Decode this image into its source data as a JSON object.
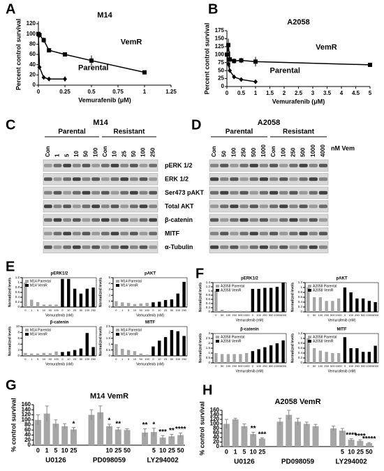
{
  "chart_data": [
    {
      "type": "line",
      "panel": "A",
      "title": "M14",
      "x_label": "Vemurafenib (μM)",
      "y_label": "Percent control survival",
      "xlim": [
        0,
        1.25
      ],
      "xticks": [
        0,
        0.25,
        0.5,
        0.75,
        1,
        1.25
      ],
      "ylim": [
        0,
        120
      ],
      "yticks": [
        0,
        20,
        40,
        60,
        80,
        100,
        120
      ],
      "series": [
        {
          "name": "VemR",
          "color": "#000000",
          "x": [
            0,
            0.01,
            0.05,
            0.1,
            0.25,
            0.5,
            1
          ],
          "values": [
            100,
            98,
            88,
            68,
            60,
            48,
            25
          ],
          "errors": [
            25,
            5,
            5,
            4,
            3,
            10,
            3
          ]
        },
        {
          "name": "Parental",
          "color": "#000000",
          "x": [
            0,
            0.01,
            0.05,
            0.1,
            0.25
          ],
          "values": [
            100,
            35,
            15,
            12,
            12
          ],
          "errors": [
            3,
            3,
            2,
            3,
            5
          ]
        }
      ]
    },
    {
      "type": "line",
      "panel": "B",
      "title": "A2058",
      "x_label": "Vemurafenib (μM)",
      "y_label": "Percent control survival",
      "xlim": [
        0,
        5
      ],
      "xticks": [
        0,
        0.5,
        1,
        1.5,
        2,
        2.5,
        3,
        3.5,
        4,
        4.5,
        5
      ],
      "ylim": [
        0,
        175
      ],
      "yticks": [
        0,
        25,
        50,
        75,
        100,
        125,
        150,
        175
      ],
      "series": [
        {
          "name": "VemR",
          "color": "#000000",
          "x": [
            0,
            0.05,
            0.1,
            0.25,
            0.5,
            1,
            5
          ],
          "values": [
            100,
            130,
            85,
            80,
            82,
            78,
            68
          ],
          "errors": [
            20,
            20,
            25,
            8,
            8,
            15,
            5
          ]
        },
        {
          "name": "Parental",
          "color": "#000000",
          "x": [
            0,
            0.05,
            0.1,
            0.25,
            0.5,
            1
          ],
          "values": [
            100,
            70,
            50,
            30,
            22,
            15
          ],
          "errors": [
            5,
            8,
            5,
            4,
            3,
            3
          ]
        }
      ]
    },
    {
      "type": "bar",
      "panel": "E",
      "title": "pERK1/2",
      "x_label": "Vemurafenib (nM)",
      "y_label": "Normalized levels",
      "categories": [
        "0",
        "1",
        "5",
        "10",
        "50",
        "100",
        "0",
        "10",
        "25",
        "50",
        "100",
        "250"
      ],
      "ylim": [
        0,
        1.2
      ],
      "yticks": [
        0,
        0.2,
        0.4,
        0.6,
        0.8,
        1,
        1.2
      ],
      "series": [
        {
          "name": "M14 Parental",
          "color": "#a6a6a6",
          "values": [
            1,
            0.3,
            0.2,
            0.1,
            0.1,
            0.1,
            null,
            null,
            null,
            null,
            null,
            null
          ]
        },
        {
          "name": "M14 VemR",
          "color": "#000000",
          "values": [
            null,
            null,
            null,
            null,
            null,
            null,
            1.15,
            1.15,
            0.75,
            0.55,
            0.75,
            0.8
          ]
        }
      ]
    },
    {
      "type": "bar",
      "title": "pAKT",
      "x_label": "Vemurafenib (nM)",
      "y_label": "Normalized levels",
      "categories": [
        "0",
        "1",
        "5",
        "10",
        "50",
        "100",
        "0",
        "10",
        "25",
        "50",
        "100",
        "250"
      ],
      "ylim": [
        0,
        5
      ],
      "yticks": [
        0,
        1,
        2,
        3,
        4,
        5
      ],
      "series": [
        {
          "name": "M14 Parental",
          "color": "#a6a6a6",
          "values": [
            1,
            0.8,
            0.7,
            0.5,
            0.6,
            0.7,
            null,
            null,
            null,
            null,
            null,
            null
          ]
        },
        {
          "name": "M14 VemR",
          "color": "#000000",
          "values": [
            null,
            null,
            null,
            null,
            null,
            null,
            0.8,
            0.9,
            1.2,
            1.3,
            2.3,
            4.3
          ]
        }
      ]
    },
    {
      "type": "bar",
      "title": "β-catenin",
      "x_label": "Vemurafenib (nM)",
      "y_label": "Normalized levels",
      "categories": [
        "0",
        "1",
        "5",
        "10",
        "50",
        "100",
        "0",
        "10",
        "25",
        "50",
        "100",
        "250"
      ],
      "ylim": [
        0,
        10
      ],
      "yticks": [
        0,
        2,
        4,
        6,
        8,
        10
      ],
      "series": [
        {
          "name": "M14 Parental",
          "color": "#a6a6a6",
          "values": [
            1,
            0.8,
            0.8,
            1,
            0.9,
            1.5,
            null,
            null,
            null,
            null,
            null,
            null
          ]
        },
        {
          "name": "M14 VemR",
          "color": "#000000",
          "values": [
            null,
            null,
            null,
            null,
            null,
            null,
            1.3,
            1.5,
            2,
            2.5,
            7.8,
            3
          ]
        }
      ]
    },
    {
      "type": "bar",
      "title": "MITF",
      "x_label": "Vemurafenib (nM)",
      "y_label": "Normalized levels",
      "categories": [
        "0",
        "1",
        "5",
        "10",
        "50",
        "100",
        "0",
        "10",
        "25",
        "50",
        "100",
        "250"
      ],
      "ylim": [
        0,
        2.5
      ],
      "yticks": [
        0,
        0.5,
        1,
        1.5,
        2,
        2.5
      ],
      "series": [
        {
          "name": "M14 Parental",
          "color": "#a6a6a6",
          "values": [
            1,
            0.6,
            0.5,
            0.4,
            0.2,
            0.1,
            null,
            null,
            null,
            null,
            null,
            null
          ]
        },
        {
          "name": "M14 VemR",
          "color": "#000000",
          "values": [
            null,
            null,
            null,
            null,
            null,
            null,
            0.8,
            1.3,
            1.6,
            2.2,
            2.1,
            1.7
          ]
        }
      ]
    },
    {
      "type": "bar",
      "panel": "F",
      "title": "pERK1/2",
      "x_label": "Vemurafenib (nM)",
      "y_label": "Normalized levels",
      "categories": [
        "0",
        "50",
        "100",
        "250",
        "500",
        "1000",
        "0",
        "100",
        "250",
        "500",
        "1000",
        "4000"
      ],
      "ylim": [
        0,
        1.4
      ],
      "yticks": [
        0,
        0.2,
        0.4,
        0.6,
        0.8,
        1,
        1.2,
        1.4
      ],
      "series": [
        {
          "name": "A2058 Parental",
          "color": "#a6a6a6",
          "values": [
            1,
            0.1,
            0.05,
            0.05,
            0.05,
            0.05,
            null,
            null,
            null,
            null,
            null,
            null
          ]
        },
        {
          "name": "A2058 VemR",
          "color": "#000000",
          "values": [
            null,
            null,
            null,
            null,
            null,
            null,
            1.1,
            1.1,
            1.15,
            1.15,
            1.2,
            1.4
          ]
        }
      ]
    },
    {
      "type": "bar",
      "title": "pAKT",
      "x_label": "Vemurafenib (nM)",
      "y_label": "Normalized levels",
      "categories": [
        "0",
        "50",
        "100",
        "250",
        "500",
        "1000",
        "0",
        "100",
        "250",
        "500",
        "1000",
        "4000"
      ],
      "ylim": [
        0,
        1.2
      ],
      "yticks": [
        0,
        0.2,
        0.4,
        0.6,
        0.8,
        1,
        1.2
      ],
      "series": [
        {
          "name": "A2058 Parental",
          "color": "#a6a6a6",
          "values": [
            1,
            0.6,
            0.6,
            0.45,
            0.45,
            0.55,
            null,
            null,
            null,
            null,
            null,
            null
          ]
        },
        {
          "name": "A2058 VemR",
          "color": "#000000",
          "values": [
            null,
            null,
            null,
            null,
            null,
            null,
            1,
            0.8,
            0.55,
            0.55,
            0.45,
            0.4
          ]
        }
      ]
    },
    {
      "type": "bar",
      "title": "β-catenin",
      "x_label": "Vemurafenib (nM)",
      "y_label": "Normalized levels",
      "categories": [
        "0",
        "50",
        "100",
        "250",
        "500",
        "1000",
        "0",
        "100",
        "250",
        "500",
        "1000",
        "4000"
      ],
      "ylim": [
        0,
        3
      ],
      "yticks": [
        0,
        0.5,
        1,
        1.5,
        2,
        2.5,
        3
      ],
      "series": [
        {
          "name": "A2058 Parental",
          "color": "#a6a6a6",
          "values": [
            1,
            0.9,
            0.9,
            0.9,
            0.9,
            1,
            null,
            null,
            null,
            null,
            null,
            null
          ]
        },
        {
          "name": "A2058 VemR",
          "color": "#000000",
          "values": [
            null,
            null,
            null,
            null,
            null,
            null,
            1.2,
            1.4,
            1.6,
            1.8,
            2,
            2.3
          ]
        }
      ]
    },
    {
      "type": "bar",
      "title": "MITF",
      "x_label": "Vemurafenib (nM)",
      "y_label": "Normalized levels",
      "categories": [
        "0",
        "50",
        "100",
        "250",
        "500",
        "1000",
        "0",
        "100",
        "250",
        "500",
        "1000",
        "4000"
      ],
      "ylim": [
        0,
        1.2
      ],
      "yticks": [
        0,
        0.2,
        0.4,
        0.6,
        0.8,
        1,
        1.2
      ],
      "series": [
        {
          "name": "A2058 Parental",
          "color": "#a6a6a6",
          "values": [
            1,
            0.6,
            0.5,
            0.45,
            0.4,
            0.4,
            null,
            null,
            null,
            null,
            null,
            null
          ]
        },
        {
          "name": "A2058 VemR",
          "color": "#000000",
          "values": [
            null,
            null,
            null,
            null,
            null,
            null,
            1.05,
            0.6,
            0.6,
            0.45,
            0.45,
            0.7
          ]
        }
      ]
    },
    {
      "type": "errorbar",
      "panel": "G",
      "title": "M14 VemR",
      "y_label": "% control survival",
      "color": "#a6a6a6",
      "ylim": [
        0,
        160
      ],
      "yticks": [
        0,
        20,
        40,
        60,
        80,
        100,
        120,
        140,
        160
      ],
      "groups": [
        {
          "name": "U0126",
          "categories": [
            "0",
            "1",
            "5",
            "10",
            "25"
          ],
          "values": [
            100,
            125,
            85,
            75,
            62
          ],
          "errors": [
            20,
            30,
            15,
            10,
            8
          ],
          "annotations": [
            null,
            null,
            null,
            null,
            "*"
          ]
        },
        {
          "name": "PD098059",
          "categories": [
            null,
            null,
            "10",
            "25",
            "50"
          ],
          "values": [
            120,
            130,
            75,
            62,
            60
          ],
          "errors": [
            20,
            25,
            8,
            8,
            5
          ],
          "annotations": [
            null,
            null,
            "*",
            "**",
            null
          ]
        },
        {
          "name": "LY294002",
          "categories": [
            null,
            "5",
            "10",
            "25",
            "50"
          ],
          "values": [
            50,
            52,
            30,
            35,
            40
          ],
          "errors": [
            15,
            15,
            8,
            8,
            8
          ],
          "annotations": [
            "**",
            "*",
            "***",
            "**",
            "****"
          ]
        }
      ]
    },
    {
      "type": "errorbar",
      "panel": "H",
      "title": "A2058 VemR",
      "y_label": "% control survival",
      "color": "#a6a6a6",
      "ylim": [
        0,
        160
      ],
      "yticks": [
        0,
        20,
        40,
        60,
        80,
        100,
        120,
        140,
        160
      ],
      "groups": [
        {
          "name": "U0126",
          "categories": [
            "0",
            "1",
            "5",
            "10",
            "25"
          ],
          "values": [
            100,
            120,
            90,
            55,
            35
          ],
          "errors": [
            20,
            5,
            10,
            8,
            3
          ],
          "annotations": [
            null,
            null,
            null,
            "**",
            "***"
          ]
        },
        {
          "name": "PD098059",
          "categories": [
            null,
            null,
            null,
            null,
            null
          ],
          "values": [
            110,
            140,
            110,
            100,
            90
          ],
          "errors": [
            15,
            20,
            15,
            8,
            8
          ],
          "annotations": [
            null,
            null,
            null,
            null,
            null
          ]
        },
        {
          "name": "LY294002",
          "categories": [
            null,
            "5",
            "10",
            "25",
            "50"
          ],
          "values": [
            80,
            70,
            30,
            25,
            15
          ],
          "errors": [
            10,
            10,
            5,
            5,
            3
          ],
          "annotations": [
            null,
            null,
            "****",
            "****",
            "*****"
          ]
        }
      ]
    }
  ],
  "blots": {
    "rows": [
      "pERK 1/2",
      "ERK 1/2",
      "Ser473 pAKT",
      "Total AKT",
      "β-catenin",
      "MITF",
      "α-Tubulin"
    ],
    "unit": "nM Vem",
    "panels": [
      {
        "panel": "C",
        "title": "M14",
        "groups": [
          {
            "name": "Parental",
            "lanes": [
              "Con",
              "1",
              "5",
              "10",
              "50",
              "100"
            ]
          },
          {
            "name": "Resistant",
            "lanes": [
              "Con",
              "10",
              "25",
              "50",
              "100",
              "250"
            ]
          }
        ]
      },
      {
        "panel": "D",
        "title": "A2058",
        "groups": [
          {
            "name": "Parental",
            "lanes": [
              "Con",
              "50",
              "100",
              "250",
              "500",
              "1000"
            ]
          },
          {
            "name": "Resistant",
            "lanes": [
              "Con",
              "100",
              "250",
              "500",
              "1000",
              "4000"
            ]
          }
        ]
      }
    ]
  }
}
